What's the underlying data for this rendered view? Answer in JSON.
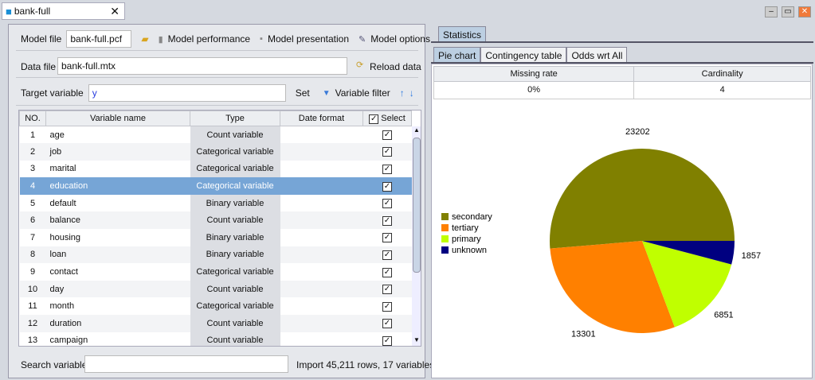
{
  "window": {
    "tab_title": "bank-full",
    "icons": [
      "cube-icon",
      "close-icon",
      "minimize-icon",
      "restore-icon",
      "window-close-icon"
    ]
  },
  "left": {
    "model_file_label": "Model file",
    "model_file_value": "bank-full.pcf",
    "model_performance": "Model performance",
    "model_presentation": "Model presentation",
    "model_options": "Model options",
    "data_file_label": "Data file",
    "data_file_value": "bank-full.mtx",
    "reload_data": "Reload data",
    "target_label": "Target variable",
    "target_value": "y",
    "set": "Set",
    "variable_filter": "Variable filter",
    "columns": [
      "NO.",
      "Variable name",
      "Type",
      "Date format",
      "Select"
    ],
    "rows": [
      {
        "no": "1",
        "name": "age",
        "type": "Count variable"
      },
      {
        "no": "2",
        "name": "job",
        "type": "Categorical variable"
      },
      {
        "no": "3",
        "name": "marital",
        "type": "Categorical variable"
      },
      {
        "no": "4",
        "name": "education",
        "type": "Categorical variable",
        "selected": true
      },
      {
        "no": "5",
        "name": "default",
        "type": "Binary variable"
      },
      {
        "no": "6",
        "name": "balance",
        "type": "Count variable"
      },
      {
        "no": "7",
        "name": "housing",
        "type": "Binary variable"
      },
      {
        "no": "8",
        "name": "loan",
        "type": "Binary variable"
      },
      {
        "no": "9",
        "name": "contact",
        "type": "Categorical variable"
      },
      {
        "no": "10",
        "name": "day",
        "type": "Count variable"
      },
      {
        "no": "11",
        "name": "month",
        "type": "Categorical variable"
      },
      {
        "no": "12",
        "name": "duration",
        "type": "Count variable"
      },
      {
        "no": "13",
        "name": "campaign",
        "type": "Count variable"
      }
    ],
    "search_label": "Search variable",
    "search_value": "",
    "import_status": "Import 45,211 rows, 17 variables"
  },
  "right": {
    "outer_tab": "Statistics",
    "tabs": [
      "Pie chart",
      "Contingency table",
      "Odds wrt All"
    ],
    "stats_headers": [
      "Missing rate",
      "Cardinality"
    ],
    "stats_values": [
      "0%",
      "4"
    ]
  },
  "chart_data": {
    "type": "pie",
    "categories": [
      "secondary",
      "tertiary",
      "primary",
      "unknown"
    ],
    "values": [
      23202,
      13301,
      6851,
      1857
    ],
    "colors": [
      "#808000",
      "#ff8000",
      "#c0ff00",
      "#000080"
    ],
    "legend": "left"
  }
}
